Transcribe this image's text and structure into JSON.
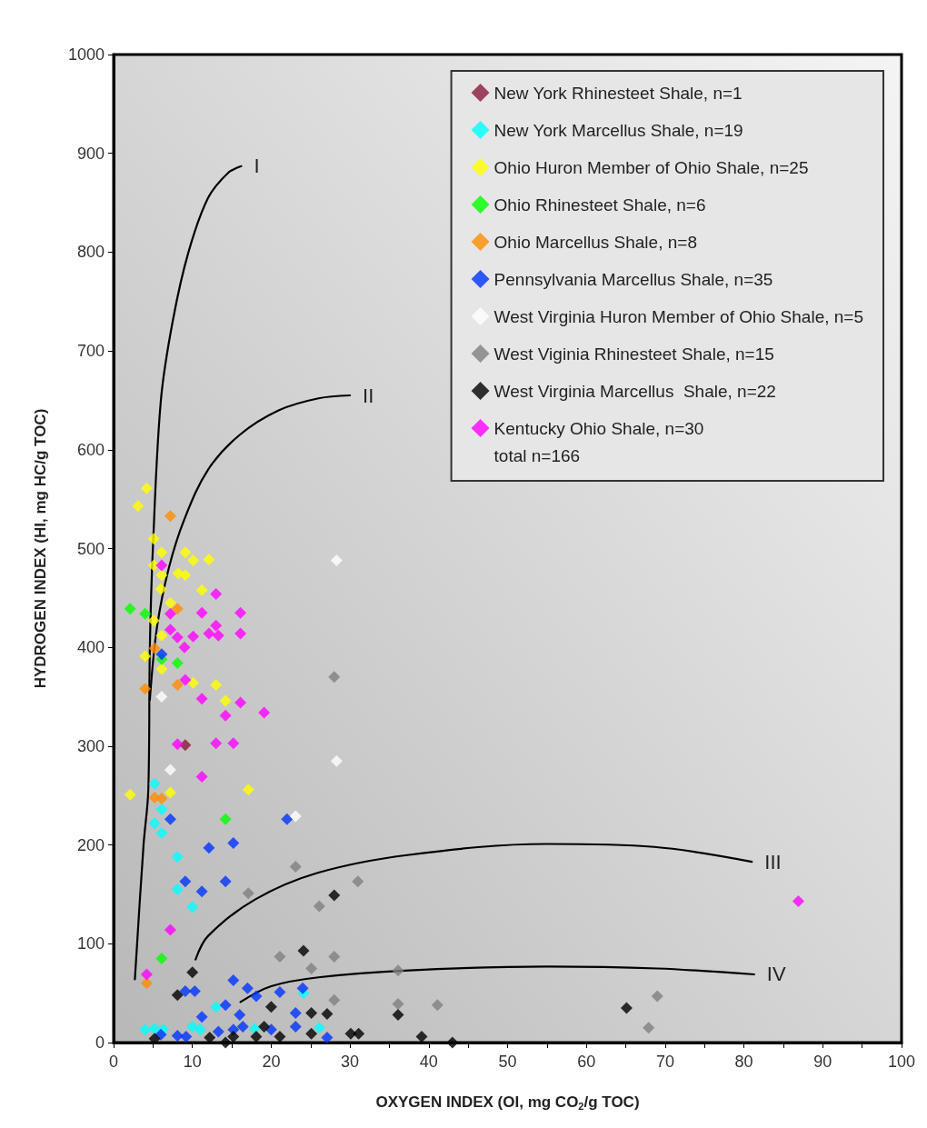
{
  "chart_data": {
    "type": "scatter",
    "xlabel": "OXYGEN INDEX (OI, mg CO$_{2}$/g TOC)",
    "ylabel": "HYDROGEN INDEX (HI, mg HC/g TOC)",
    "xlim": [
      0,
      100
    ],
    "ylim": [
      0,
      1000
    ],
    "xticks": [
      0,
      {
        "value": 5,
        "label": null
      },
      10,
      {
        "value": 15,
        "label": null
      },
      20,
      {
        "value": 25,
        "label": null
      },
      30,
      {
        "value": 35,
        "label": null
      },
      40,
      {
        "value": 45,
        "label": null
      },
      50,
      {
        "value": 55,
        "label": null
      },
      60,
      {
        "value": 65,
        "label": null
      },
      70,
      {
        "value": 75,
        "label": null
      },
      80,
      {
        "value": 85,
        "label": null
      },
      90,
      {
        "value": 95,
        "label": null
      },
      100
    ],
    "yticks": [
      0,
      100,
      200,
      300,
      400,
      500,
      600,
      700,
      800,
      900,
      1000
    ],
    "grid": false,
    "legend": "top right",
    "marker": "diamond",
    "annotations": [
      "I",
      "II",
      "III",
      "IV",
      "total n=166"
    ],
    "series": [
      {
        "type": "line",
        "marker": "none",
        "color": "#000000",
        "x": [
          2.7,
          3.8,
          4.4,
          4.6,
          5.0,
          6.0,
          7.5,
          9.5,
          12,
          14.5,
          16.2
        ],
        "values": [
          64,
          200,
          255,
          400,
          503,
          650,
          730,
          800,
          855,
          880,
          887
        ]
      },
      {
        "type": "line",
        "marker": "none",
        "color": "#000000",
        "x": [
          4.6,
          5.5,
          7,
          9,
          12,
          16,
          21,
          26,
          30
        ],
        "values": [
          347,
          420,
          480,
          530,
          580,
          615,
          640,
          652,
          655
        ]
      },
      {
        "type": "line",
        "marker": "none",
        "color": "#000000",
        "x": [
          10.4,
          12,
          18,
          26,
          37.5,
          55,
          68.6,
          81
        ],
        "values": [
          84,
          108,
          145,
          172,
          190,
          201,
          198,
          183
        ]
      },
      {
        "type": "line",
        "marker": "none",
        "color": "#000000",
        "x": [
          16.1,
          20,
          26,
          37.5,
          55,
          69,
          81.3
        ],
        "values": [
          41,
          57,
          66,
          73,
          77,
          75,
          69
        ]
      },
      {
        "name": "New York Rhinesteet Shale, n=1",
        "color": "#8b1a3a",
        "x": [
          9.1
        ],
        "values": [
          301
        ]
      },
      {
        "name": "New York Marcellus Shale, n=19",
        "color": "#00ffff",
        "x": [
          5.2,
          6.1,
          5.2,
          6.1,
          8.1,
          8.1,
          10.0,
          13.0,
          4.0,
          5.2,
          6.3,
          10.0,
          11.0,
          17.9,
          26.1,
          24.1
        ],
        "values": [
          262,
          236,
          222,
          212,
          188,
          155,
          137,
          36,
          13,
          14,
          13,
          16,
          13,
          14,
          15,
          50
        ]
      },
      {
        "name": "Ohio Huron Member of Ohio Shale, n=25",
        "color": "#ffff00",
        "x": [
          4.2,
          3.1,
          5.1,
          6.1,
          9.1,
          10.1,
          12.1,
          5.1,
          6.1,
          8.2,
          9.1,
          6.0,
          11.2,
          7.2,
          5.1,
          6.1,
          4.0,
          6.1,
          10.1,
          13.0,
          14.2,
          2.1,
          7.2,
          17.1
        ],
        "values": [
          561,
          543,
          510,
          496,
          496,
          488,
          489,
          483,
          473,
          475,
          473,
          459,
          458,
          445,
          427,
          412,
          391,
          378,
          364,
          362,
          346,
          251,
          253,
          256
        ]
      },
      {
        "name": "Ohio Rhinesteet Shale, n=6",
        "color": "#00ff00",
        "x": [
          2.1,
          4.0,
          8.1,
          6.1,
          14.2,
          6.1
        ],
        "values": [
          439,
          434,
          384,
          388,
          226,
          85
        ]
      },
      {
        "name": "Ohio Marcellus Shale, n=8",
        "color": "#ff8c00",
        "x": [
          7.2,
          8.1,
          5.2,
          4.0,
          8.1,
          5.2,
          6.1,
          4.2
        ],
        "values": [
          533,
          439,
          399,
          358,
          362,
          248,
          247,
          60
        ]
      },
      {
        "name": "Pennsylvania Marcellus Shale, n=35",
        "color": "#0033ff",
        "x": [
          6.1,
          7.2,
          22.0,
          12.1,
          15.2,
          9.1,
          14.2,
          11.2,
          15.2,
          17.0,
          18.1,
          21.1,
          24.0,
          9.1,
          10.3,
          14.2,
          11.2,
          16.0,
          23.1,
          23.1,
          16.4,
          6.0,
          8.1,
          9.2,
          13.3,
          15.2,
          20.0,
          27.1
        ],
        "values": [
          393,
          226,
          226,
          197,
          202,
          163,
          163,
          153,
          63,
          55,
          47,
          51,
          55,
          52,
          52,
          38,
          26,
          28,
          30,
          16,
          16,
          8,
          7,
          6,
          11,
          13,
          13,
          5
        ]
      },
      {
        "name": "West Virginia Huron Member of Ohio Shale, n=5",
        "color": "#ffffff",
        "x": [
          28.3,
          28.3,
          23.1,
          6.1,
          7.2
        ],
        "values": [
          488,
          285,
          229,
          350,
          276
        ]
      },
      {
        "name": "West Viginia Rhinesteet Shale, n=15",
        "color": "#808080",
        "x": [
          28.0,
          23.1,
          31.0,
          26.1,
          28.0,
          25.1,
          36.1,
          28.0,
          36.1,
          41.1,
          17.1,
          21.1,
          69.0,
          67.9
        ],
        "values": [
          370,
          178,
          163,
          138,
          87,
          75,
          73,
          43,
          39,
          38,
          151,
          87,
          47,
          15
        ]
      },
      {
        "name": "West Virginia Marcellus  Shale, n=22",
        "color": "#000000",
        "x": [
          28.0,
          24.1,
          25.1,
          27.1,
          36.1,
          25.1,
          30.1,
          31.1,
          39.1,
          43.0,
          10.0,
          8.1,
          20.0,
          19.1,
          12.2,
          14.2,
          15.2,
          18.1,
          21.1,
          5.2,
          65.1
        ],
        "values": [
          149,
          93,
          30,
          29,
          28,
          9,
          9,
          9,
          6,
          0,
          71,
          48,
          36,
          16,
          5,
          0,
          6,
          6,
          6,
          4,
          35
        ]
      },
      {
        "name": "Kentucky Ohio Shale, n=30",
        "color": "#ff00ff",
        "x": [
          6.1,
          13.0,
          7.2,
          11.2,
          16.1,
          13.0,
          12.1,
          13.3,
          16.1,
          7.2,
          8.1,
          10.1,
          9.0,
          9.1,
          11.2,
          16.1,
          14.2,
          19.1,
          8.1,
          13.0,
          15.2,
          11.2,
          7.2,
          4.2,
          86.9
        ],
        "values": [
          483,
          454,
          434,
          435,
          435,
          422,
          414,
          412,
          414,
          418,
          410,
          411,
          400,
          367,
          348,
          344,
          331,
          334,
          302,
          303,
          303,
          269,
          114,
          69,
          143
        ]
      }
    ]
  }
}
